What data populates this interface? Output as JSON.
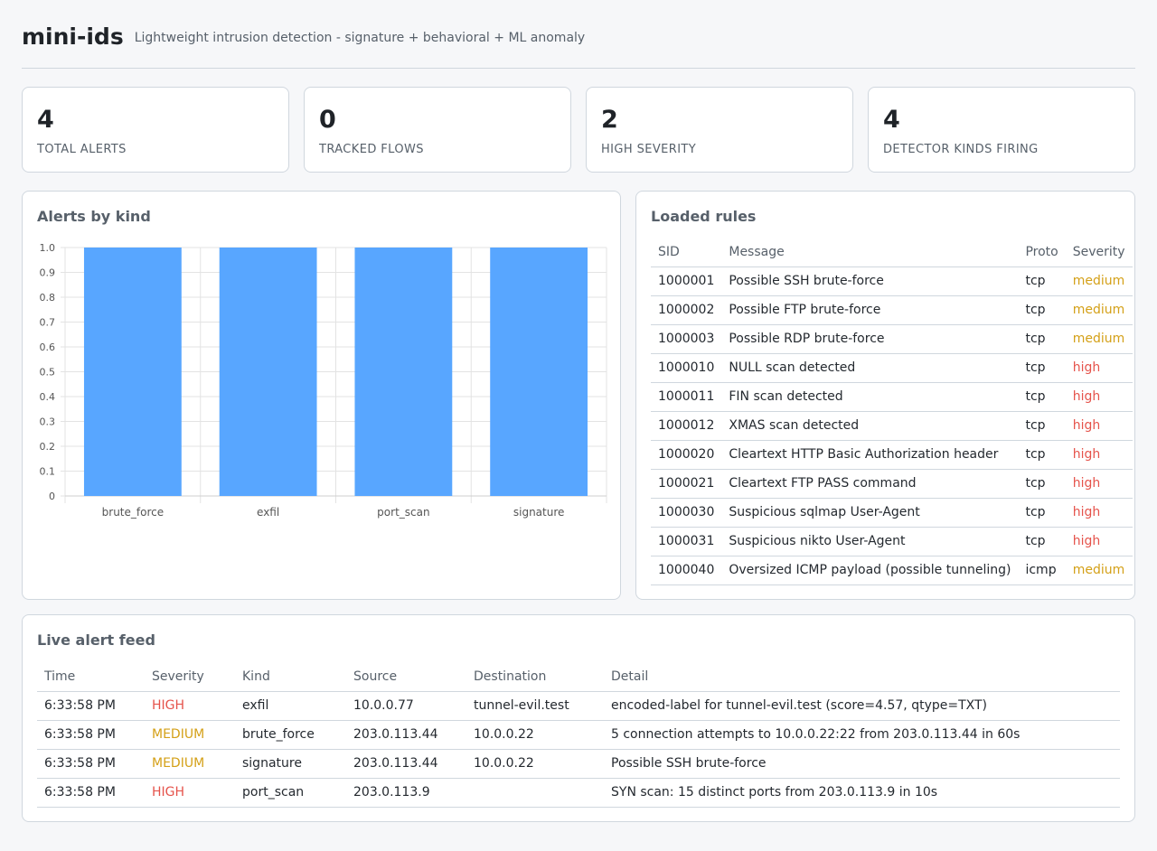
{
  "header": {
    "title": "mini-ids",
    "subtitle": "Lightweight intrusion detection - signature + behavioral + ML anomaly"
  },
  "stats": [
    {
      "value": "4",
      "label": "TOTAL ALERTS"
    },
    {
      "value": "0",
      "label": "TRACKED FLOWS"
    },
    {
      "value": "2",
      "label": "HIGH SEVERITY"
    },
    {
      "value": "4",
      "label": "DETECTOR KINDS FIRING"
    }
  ],
  "chart_panel": {
    "title": "Alerts by kind"
  },
  "chart_data": {
    "type": "bar",
    "categories": [
      "brute_force",
      "exfil",
      "port_scan",
      "signature"
    ],
    "values": [
      1,
      1,
      1,
      1
    ],
    "ylim": [
      0,
      1
    ],
    "yticks": [
      "0",
      "0.1",
      "0.2",
      "0.3",
      "0.4",
      "0.5",
      "0.6",
      "0.7",
      "0.8",
      "0.9",
      "1.0"
    ],
    "grid": true,
    "color": "#58a6ff"
  },
  "rules": {
    "title": "Loaded rules",
    "headers": {
      "sid": "SID",
      "message": "Message",
      "proto": "Proto",
      "severity": "Severity"
    },
    "rows": [
      {
        "sid": "1000001",
        "message": "Possible SSH brute-force",
        "proto": "tcp",
        "severity": "medium"
      },
      {
        "sid": "1000002",
        "message": "Possible FTP brute-force",
        "proto": "tcp",
        "severity": "medium"
      },
      {
        "sid": "1000003",
        "message": "Possible RDP brute-force",
        "proto": "tcp",
        "severity": "medium"
      },
      {
        "sid": "1000010",
        "message": "NULL scan detected",
        "proto": "tcp",
        "severity": "high"
      },
      {
        "sid": "1000011",
        "message": "FIN scan detected",
        "proto": "tcp",
        "severity": "high"
      },
      {
        "sid": "1000012",
        "message": "XMAS scan detected",
        "proto": "tcp",
        "severity": "high"
      },
      {
        "sid": "1000020",
        "message": "Cleartext HTTP Basic Authorization header",
        "proto": "tcp",
        "severity": "high"
      },
      {
        "sid": "1000021",
        "message": "Cleartext FTP PASS command",
        "proto": "tcp",
        "severity": "high"
      },
      {
        "sid": "1000030",
        "message": "Suspicious sqlmap User-Agent",
        "proto": "tcp",
        "severity": "high"
      },
      {
        "sid": "1000031",
        "message": "Suspicious nikto User-Agent",
        "proto": "tcp",
        "severity": "high"
      },
      {
        "sid": "1000040",
        "message": "Oversized ICMP payload (possible tunneling)",
        "proto": "icmp",
        "severity": "medium"
      }
    ]
  },
  "feed": {
    "title": "Live alert feed",
    "headers": {
      "time": "Time",
      "severity": "Severity",
      "kind": "Kind",
      "source": "Source",
      "destination": "Destination",
      "detail": "Detail"
    },
    "rows": [
      {
        "time": "6:33:58 PM",
        "severity": "HIGH",
        "kind": "exfil",
        "source": "10.0.0.77",
        "destination": "tunnel-evil.test",
        "detail": "encoded-label for tunnel-evil.test (score=4.57, qtype=TXT)"
      },
      {
        "time": "6:33:58 PM",
        "severity": "MEDIUM",
        "kind": "brute_force",
        "source": "203.0.113.44",
        "destination": "10.0.0.22",
        "detail": "5 connection attempts to 10.0.0.22:22 from 203.0.113.44 in 60s"
      },
      {
        "time": "6:33:58 PM",
        "severity": "MEDIUM",
        "kind": "signature",
        "source": "203.0.113.44",
        "destination": "10.0.0.22",
        "detail": "Possible SSH brute-force"
      },
      {
        "time": "6:33:58 PM",
        "severity": "HIGH",
        "kind": "port_scan",
        "source": "203.0.113.9",
        "destination": "",
        "detail": "SYN scan: 15 distinct ports from 203.0.113.9 in 10s"
      }
    ]
  },
  "colors": {
    "high": "#e5534b",
    "medium": "#d4a017",
    "bar": "#58a6ff"
  }
}
